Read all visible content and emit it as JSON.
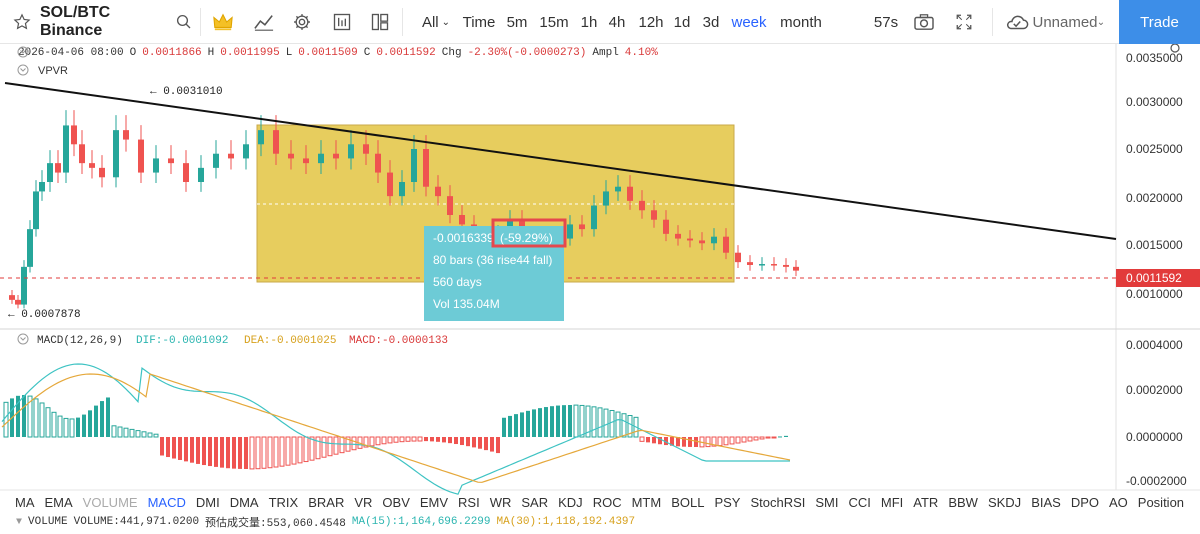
{
  "topbar": {
    "symbol": "SOL/BTC Binance",
    "timeframes": [
      "All",
      "Time",
      "5m",
      "15m",
      "1h",
      "4h",
      "12h",
      "1d",
      "3d",
      "week",
      "month"
    ],
    "active_timeframe": "week",
    "countdown": "57s",
    "layout_name": "Unnamed",
    "trade_label": "Trade"
  },
  "ohlc": {
    "date": "2026-04-06 08:00",
    "o_label": "O",
    "o": "0.0011866",
    "h_label": "H",
    "h": "0.0011995",
    "l_label": "L",
    "l": "0.0011509",
    "c_label": "C",
    "c": "0.0011592",
    "chg_label": "Chg",
    "chg": "-2.30%(-0.0000273)",
    "ampl_label": "Ampl",
    "ampl": "4.10%"
  },
  "overlay": {
    "vpvr_label": "VPVR"
  },
  "annotations": {
    "high_marker": "← 0.0031010",
    "low_marker": "← 0.0007878",
    "current_price": "0.0011592",
    "range_change": "-0.0016339",
    "range_pct": "(-59.29%)",
    "range_bars": "80 bars (36 rise44 fall)",
    "range_days": "560 days",
    "range_vol": "Vol 135.04M"
  },
  "price_axis": [
    "0.0035000",
    "0.0030000",
    "0.0025000",
    "0.0020000",
    "0.0015000",
    "0.0010000"
  ],
  "macd_axis": [
    "0.0004000",
    "0.0002000",
    "0.0000000",
    "-0.0002000"
  ],
  "macd_header": {
    "title": "MACD(12,26,9)",
    "dif": "DIF:-0.0001092",
    "dea": "DEA:-0.0001025",
    "macd": "MACD:-0.0000133"
  },
  "indicators": [
    "MA",
    "EMA",
    "VOLUME",
    "MACD",
    "DMI",
    "DMA",
    "TRIX",
    "BRAR",
    "VR",
    "OBV",
    "EMV",
    "RSI",
    "WR",
    "SAR",
    "KDJ",
    "ROC",
    "MTM",
    "BOLL",
    "PSY",
    "StochRSI",
    "SMI",
    "CCI",
    "MFI",
    "ATR",
    "BBW",
    "SKDJ",
    "BIAS",
    "DPO",
    "AO",
    "Position"
  ],
  "indicator_states": {
    "VOLUME": "off",
    "MACD": "on"
  },
  "volume_header": {
    "title": "VOLUME",
    "volume": "VOLUME:441,971.0200",
    "est": "预估成交量:553,060.4548",
    "ma15": "MA(15):1,164,696.2299",
    "ma30": "MA(30):1,118,192.4397"
  },
  "colors": {
    "up": "#26a69a",
    "down": "#ef5350",
    "accent": "#2962ff",
    "trade": "#3d8ee8",
    "range_box": "#e2c23a",
    "tooltip": "#6dcbd6"
  },
  "chart_data": {
    "type": "candlestick",
    "price_ylim": [
      0.0007,
      0.0035
    ],
    "known_points": {
      "high": 0.003101,
      "low": 0.0007878,
      "last_close": 0.0011592
    },
    "macd_ylim": [
      -0.00025,
      0.00045
    ]
  }
}
